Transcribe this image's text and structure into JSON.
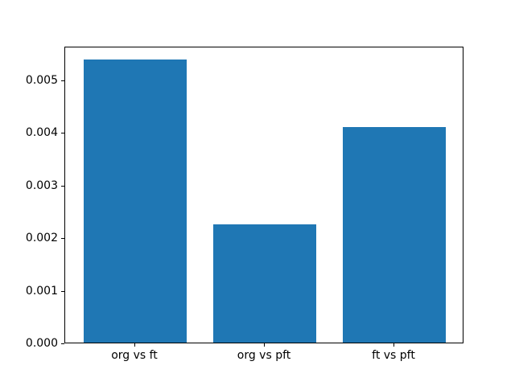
{
  "chart_data": {
    "type": "bar",
    "title": "",
    "xlabel": "",
    "ylabel": "",
    "categories": [
      "org vs ft",
      "org vs pft",
      "ft vs pft"
    ],
    "values": [
      0.00538,
      0.00225,
      0.00409
    ],
    "ylim": [
      0,
      0.00564
    ],
    "yticks": [
      {
        "value": 0.0,
        "label": "0.000"
      },
      {
        "value": 0.001,
        "label": "0.001"
      },
      {
        "value": 0.002,
        "label": "0.002"
      },
      {
        "value": 0.003,
        "label": "0.003"
      },
      {
        "value": 0.004,
        "label": "0.004"
      },
      {
        "value": 0.005,
        "label": "0.005"
      }
    ],
    "bar_color": "#1f77b4",
    "bar_width_fraction": 0.8,
    "x_margin": 0.05,
    "grid": false,
    "legend": null
  },
  "figure": {
    "background_color": "#ffffff",
    "spine_color": "#000000",
    "tick_color": "#000000",
    "label_color": "#000000"
  }
}
